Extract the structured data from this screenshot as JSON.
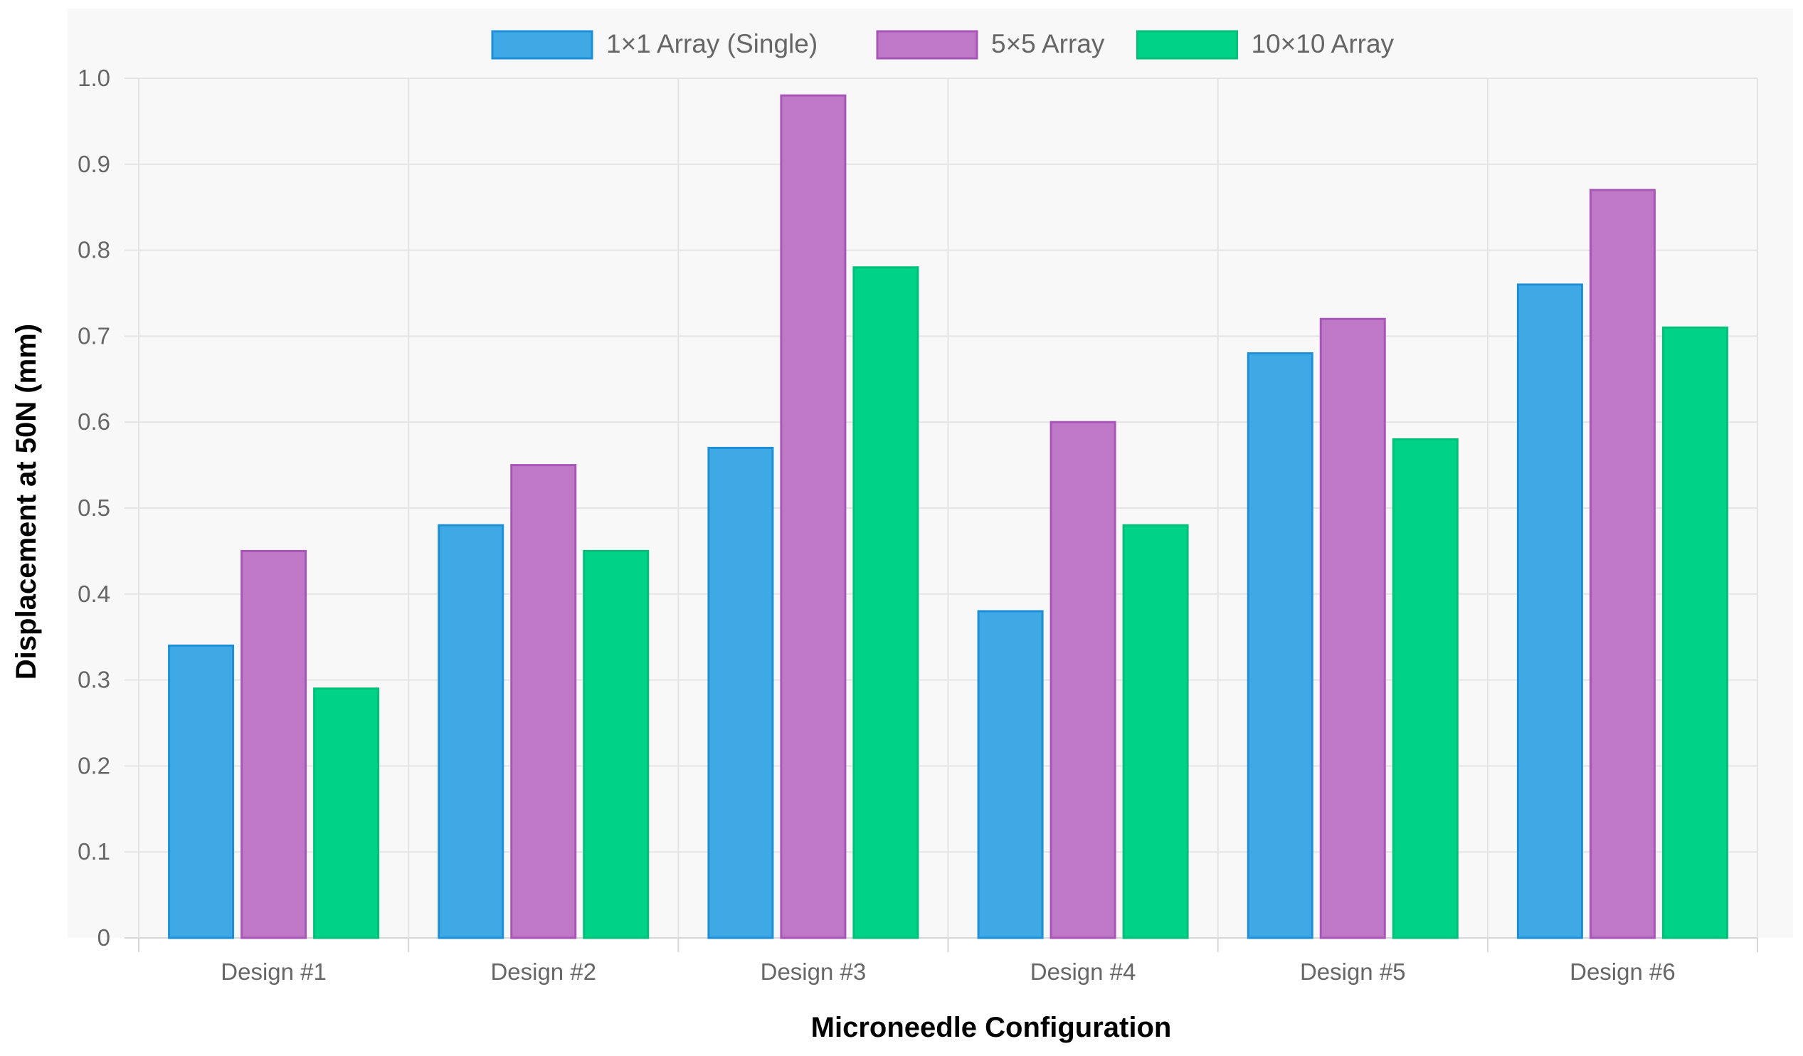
{
  "chart_data": {
    "type": "bar",
    "title": "",
    "xlabel": "Microneedle Configuration",
    "ylabel": "Displacement at 50N (mm)",
    "ylim": [
      0,
      1.0
    ],
    "yticks": [
      "0",
      "0.1",
      "0.2",
      "0.3",
      "0.4",
      "0.5",
      "0.6",
      "0.7",
      "0.8",
      "0.9",
      "1.0"
    ],
    "categories": [
      "Design #1",
      "Design #2",
      "Design #3",
      "Design #4",
      "Design #5",
      "Design #6"
    ],
    "legend_position": "top-center",
    "grid": true,
    "series": [
      {
        "name": "1×1 Array (Single)",
        "color": "#3fa9e6",
        "border": "#1e8fd6",
        "values": [
          0.34,
          0.48,
          0.57,
          0.38,
          0.68,
          0.76
        ]
      },
      {
        "name": "5×5 Array",
        "color": "#bf78c6",
        "border": "#a855b8",
        "values": [
          0.45,
          0.55,
          0.98,
          0.6,
          0.72,
          0.87
        ]
      },
      {
        "name": "10×10 Array",
        "color": "#00d287",
        "border": "#00c07a",
        "values": [
          0.29,
          0.45,
          0.78,
          0.48,
          0.58,
          0.71
        ]
      }
    ]
  }
}
